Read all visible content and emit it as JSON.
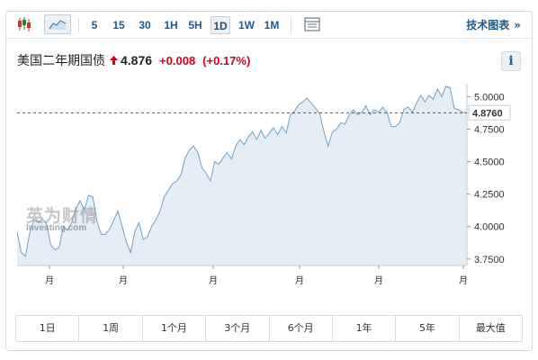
{
  "toolbar": {
    "chart_type_icon": "candlestick-icon",
    "area_type_icon": "area-chart-icon",
    "timeframes": [
      "5",
      "15",
      "30",
      "1H",
      "5H",
      "1D",
      "1W",
      "1M"
    ],
    "active_timeframe": "1D",
    "layout_icon": "table-layout-icon",
    "advanced_label": "技术图表",
    "advanced_chevron": "»"
  },
  "quote": {
    "name": "美国二年期国债",
    "direction_icon": "up-arrow-icon",
    "price": "4.876",
    "change": "+0.008",
    "change_pct": "(+0.17%)",
    "up_color": "#d0021b",
    "info_label": "i"
  },
  "watermark": {
    "cn": "英为财情",
    "en": "Investing.com"
  },
  "chart_data": {
    "type": "area",
    "ylim": [
      3.7,
      5.1
    ],
    "y_ticks": [
      "5.0000",
      "4.7500",
      "4.5000",
      "4.2500",
      "4.0000",
      "3.7500"
    ],
    "y_tick_values": [
      5.0,
      4.75,
      4.5,
      4.25,
      4.0,
      3.75
    ],
    "x_labels": [
      "月",
      "月",
      "月",
      "月",
      "月",
      "月"
    ],
    "current_value": 4.876,
    "current_label": "4.8760",
    "line_color": "#6ea3c9",
    "fill_color": "#e5eef6",
    "values": [
      3.96,
      3.8,
      3.77,
      3.95,
      4.05,
      4.03,
      4.06,
      4.02,
      3.86,
      3.82,
      3.84,
      4.0,
      3.97,
      4.03,
      4.14,
      4.2,
      4.13,
      4.24,
      4.23,
      4.04,
      3.94,
      3.94,
      3.98,
      4.05,
      4.12,
      4.0,
      3.88,
      3.8,
      3.96,
      4.03,
      3.9,
      3.92,
      4.0,
      4.05,
      4.12,
      4.23,
      4.28,
      4.33,
      4.35,
      4.4,
      4.53,
      4.59,
      4.62,
      4.57,
      4.45,
      4.41,
      4.35,
      4.5,
      4.48,
      4.53,
      4.57,
      4.52,
      4.62,
      4.67,
      4.63,
      4.69,
      4.73,
      4.67,
      4.74,
      4.68,
      4.72,
      4.76,
      4.71,
      4.77,
      4.72,
      4.86,
      4.89,
      4.94,
      4.96,
      4.99,
      4.95,
      4.91,
      4.87,
      4.73,
      4.62,
      4.73,
      4.75,
      4.8,
      4.79,
      4.86,
      4.9,
      4.86,
      4.88,
      4.93,
      4.86,
      4.9,
      4.88,
      4.92,
      4.88,
      4.77,
      4.77,
      4.8,
      4.9,
      4.92,
      4.88,
      4.95,
      5.01,
      4.96,
      5.01,
      4.98,
      5.06,
      5.0,
      5.08,
      5.07,
      4.91,
      4.9,
      4.88,
      4.876
    ]
  },
  "ranges": [
    "1日",
    "1周",
    "1个月",
    "3个月",
    "6个月",
    "1年",
    "5年",
    "最大值"
  ]
}
